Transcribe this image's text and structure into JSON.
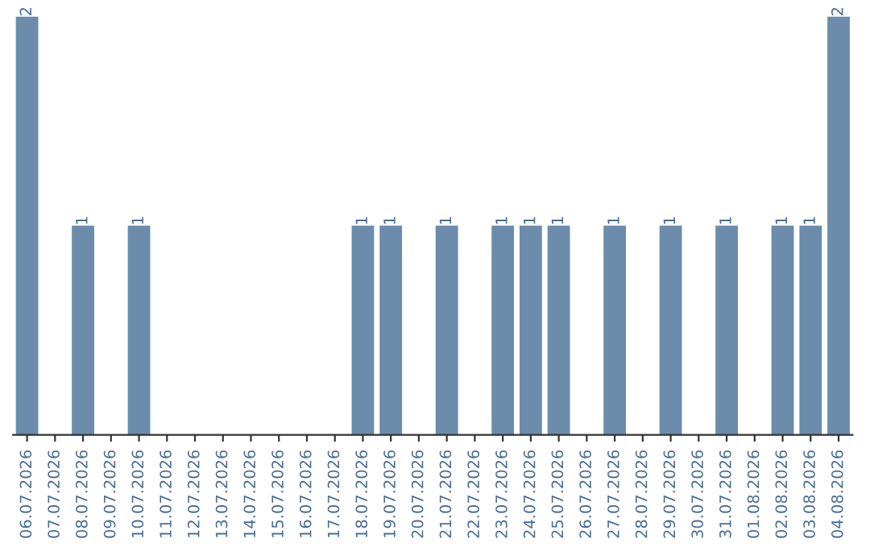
{
  "chart_data": {
    "type": "bar",
    "categories": [
      "06.07.2026",
      "07.07.2026",
      "08.07.2026",
      "09.07.2026",
      "10.07.2026",
      "11.07.2026",
      "12.07.2026",
      "13.07.2026",
      "14.07.2026",
      "15.07.2026",
      "16.07.2026",
      "17.07.2026",
      "18.07.2026",
      "19.07.2026",
      "20.07.2026",
      "21.07.2026",
      "22.07.2026",
      "23.07.2026",
      "24.07.2026",
      "25.07.2026",
      "26.07.2026",
      "27.07.2026",
      "28.07.2026",
      "29.07.2026",
      "30.07.2026",
      "31.07.2026",
      "01.08.2026",
      "02.08.2026",
      "03.08.2026",
      "04.08.2026"
    ],
    "values": [
      2,
      0,
      1,
      0,
      1,
      0,
      0,
      0,
      0,
      0,
      0,
      0,
      1,
      1,
      0,
      1,
      0,
      1,
      1,
      1,
      0,
      1,
      0,
      1,
      0,
      1,
      0,
      1,
      1,
      2
    ],
    "value_labels": [
      "2",
      null,
      "1",
      null,
      "1",
      null,
      null,
      null,
      null,
      null,
      null,
      null,
      "1",
      "1",
      null,
      "1",
      null,
      "1",
      "1",
      "1",
      null,
      "1",
      null,
      "1",
      null,
      "1",
      null,
      "1",
      "1",
      "2"
    ],
    "color": "#6b8cab",
    "grid": false,
    "tick_labels": "x"
  }
}
